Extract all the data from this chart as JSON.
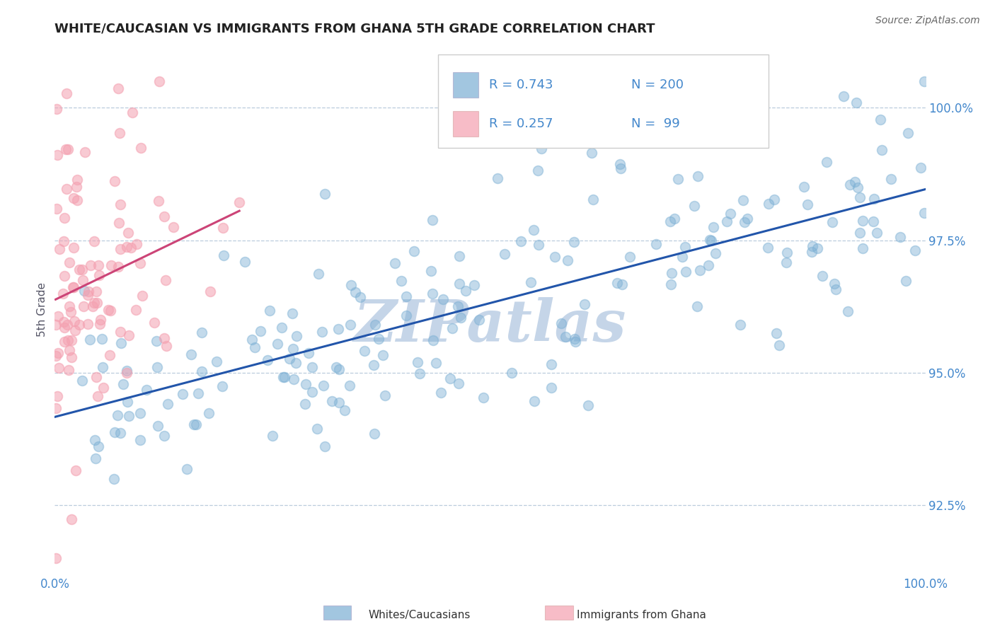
{
  "title": "WHITE/CAUCASIAN VS IMMIGRANTS FROM GHANA 5TH GRADE CORRELATION CHART",
  "source_text": "Source: ZipAtlas.com",
  "ylabel": "5th Grade",
  "xlim": [
    0.0,
    100.0
  ],
  "ylim": [
    91.2,
    101.2
  ],
  "yticks": [
    92.5,
    95.0,
    97.5,
    100.0
  ],
  "blue_R": 0.743,
  "blue_N": 200,
  "pink_R": 0.257,
  "pink_N": 99,
  "blue_color": "#7BAFD4",
  "pink_color": "#F4A0B0",
  "trend_blue": "#2255AA",
  "trend_pink": "#CC4477",
  "legend_label_blue": "Whites/Caucasians",
  "legend_label_pink": "Immigrants from Ghana",
  "watermark": "ZIPatlas",
  "watermark_color": "#C5D5E8",
  "title_color": "#222222",
  "axis_label_color": "#4488CC",
  "background_color": "#FFFFFF",
  "grid_color": "#BBCCDD",
  "seed_blue": 77,
  "seed_pink": 55
}
